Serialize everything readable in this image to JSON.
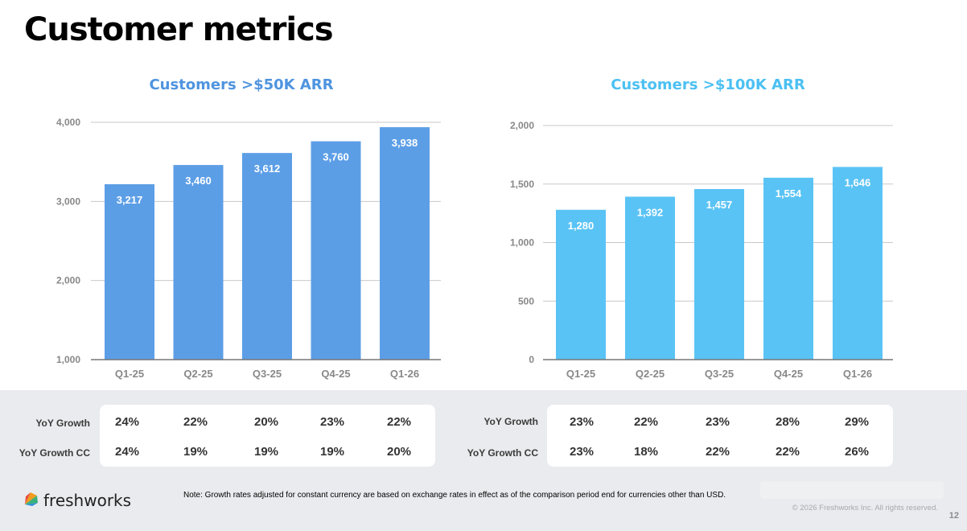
{
  "page": {
    "title": "Customer metrics",
    "note": "Note: Growth rates adjusted for constant currency are based on exchange rates in effect as of the comparison period end for currencies other than USD.",
    "copyright": "© 2026 Freshworks Inc. All rights reserved.",
    "page_number": "12"
  },
  "logo": {
    "text": "freshworks",
    "icon": "freshworks-logo-icon"
  },
  "colors": {
    "chart1_bar": "#5c9ee6",
    "chart2_bar": "#5ac3f5",
    "chart1_title": "#4f94df",
    "chart2_title": "#4cc0f2",
    "grid": "#c8c8c8",
    "axis": "#777777",
    "tick": "#888888"
  },
  "chart_data": [
    {
      "type": "bar",
      "title": "Customers >$50K ARR",
      "categories": [
        "Q1-25",
        "Q2-25",
        "Q3-25",
        "Q4-25",
        "Q1-26"
      ],
      "values": [
        3217,
        3460,
        3612,
        3760,
        3938
      ],
      "data_labels": [
        "3,217",
        "3,460",
        "3,612",
        "3,760",
        "3,938"
      ],
      "ylim": [
        1000,
        4000
      ],
      "yticks": [
        1000,
        2000,
        3000,
        4000
      ],
      "ytick_labels": [
        "1,000",
        "2,000",
        "3,000",
        "4,000"
      ],
      "grid": true
    },
    {
      "type": "bar",
      "title": "Customers >$100K ARR",
      "categories": [
        "Q1-25",
        "Q2-25",
        "Q3-25",
        "Q4-25",
        "Q1-26"
      ],
      "values": [
        1280,
        1392,
        1457,
        1554,
        1646
      ],
      "data_labels": [
        "1,280",
        "1,392",
        "1,457",
        "1,554",
        "1,646"
      ],
      "ylim": [
        0,
        2000
      ],
      "yticks": [
        0,
        500,
        1000,
        1500,
        2000
      ],
      "ytick_labels": [
        "0",
        "500",
        "1,000",
        "1,500",
        "2,000"
      ],
      "grid": true
    }
  ],
  "growth_tables": [
    {
      "rows": [
        {
          "label": "YoY Growth",
          "values": [
            "24%",
            "22%",
            "20%",
            "23%",
            "22%"
          ]
        },
        {
          "label": "YoY Growth CC",
          "values": [
            "24%",
            "19%",
            "19%",
            "19%",
            "20%"
          ]
        }
      ]
    },
    {
      "rows": [
        {
          "label": "YoY Growth",
          "values": [
            "23%",
            "22%",
            "23%",
            "28%",
            "29%"
          ]
        },
        {
          "label": "YoY Growth CC",
          "values": [
            "23%",
            "18%",
            "22%",
            "22%",
            "26%"
          ]
        }
      ]
    }
  ]
}
